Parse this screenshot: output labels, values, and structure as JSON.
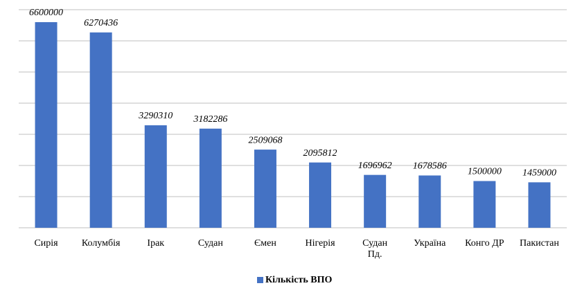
{
  "chart_data": {
    "type": "bar",
    "categories": [
      "Сирія",
      "Колумбія",
      "Ірак",
      "Судан",
      "Ємен",
      "Нігерія",
      "Судан Пд.",
      "Україна",
      "Конго ДР",
      "Пакистан"
    ],
    "series": [
      {
        "name": "Кількість ВПО",
        "color": "#4472c4",
        "values": [
          6600000,
          6270436,
          3290310,
          3182286,
          2509068,
          2095812,
          1696962,
          1678586,
          1500000,
          1459000
        ]
      }
    ],
    "ylim": [
      0,
      7000000
    ],
    "yticks": [
      0,
      1000000,
      2000000,
      3000000,
      4000000,
      5000000,
      6000000,
      7000000
    ],
    "grid": true,
    "legend": "bottom"
  }
}
